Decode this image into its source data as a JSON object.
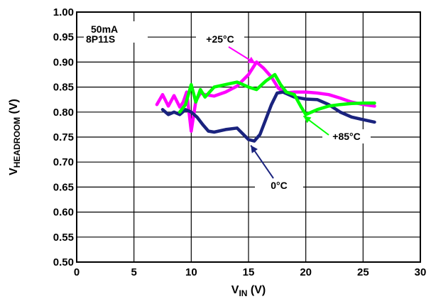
{
  "chart_data": {
    "type": "line",
    "xlabel": {
      "main": "V",
      "sub": "IN",
      "unit": " (V)"
    },
    "ylabel": {
      "main": "V",
      "sub": "HEADROOM",
      "unit": " (V)"
    },
    "xlim": [
      0,
      30
    ],
    "ylim": [
      0.5,
      1.0
    ],
    "x_ticks": [
      "0",
      "5",
      "10",
      "15",
      "20",
      "25",
      "30"
    ],
    "y_ticks": [
      "0.50",
      "0.55",
      "0.60",
      "0.65",
      "0.70",
      "0.75",
      "0.80",
      "0.85",
      "0.90",
      "0.95",
      "1.00"
    ],
    "grid": true,
    "condition_label": [
      "50mA",
      "8P11S"
    ],
    "series": [
      {
        "name": "+25°C",
        "color": "#ff00ff",
        "x": [
          7.0,
          7.5,
          8.0,
          8.5,
          9.0,
          9.3,
          9.6,
          10.0,
          10.4,
          10.8,
          11.2,
          12.0,
          13.0,
          14.0,
          15.0,
          15.7,
          16.3,
          17.0,
          17.6,
          18.2,
          19.0,
          20.0,
          21.0,
          22.0,
          23.0,
          24.0,
          25.0,
          26.0
        ],
        "y": [
          0.815,
          0.835,
          0.812,
          0.833,
          0.81,
          0.82,
          0.84,
          0.762,
          0.822,
          0.838,
          0.835,
          0.832,
          0.84,
          0.852,
          0.875,
          0.9,
          0.888,
          0.87,
          0.848,
          0.838,
          0.84,
          0.84,
          0.838,
          0.835,
          0.828,
          0.82,
          0.815,
          0.812
        ]
      },
      {
        "name": "+85°C",
        "color": "#00ff00",
        "x": [
          9.0,
          9.5,
          10.0,
          10.4,
          10.8,
          11.2,
          12.0,
          13.0,
          14.0,
          15.0,
          15.7,
          16.5,
          17.3,
          17.8,
          18.3,
          19.0,
          19.6,
          20.0,
          21.0,
          22.0,
          23.0,
          24.0,
          25.0,
          26.0
        ],
        "y": [
          0.8,
          0.815,
          0.855,
          0.82,
          0.845,
          0.83,
          0.85,
          0.855,
          0.86,
          0.85,
          0.845,
          0.862,
          0.875,
          0.855,
          0.84,
          0.835,
          0.81,
          0.795,
          0.805,
          0.812,
          0.815,
          0.817,
          0.818,
          0.818
        ]
      },
      {
        "name": "0°C",
        "color": "#1a237e",
        "x": [
          7.5,
          8.0,
          8.5,
          9.0,
          9.5,
          10.0,
          10.5,
          11.0,
          11.5,
          12.0,
          13.0,
          14.0,
          15.0,
          15.5,
          16.0,
          16.5,
          17.0,
          17.5,
          18.0,
          19.0,
          20.0,
          21.0,
          22.0,
          23.0,
          24.0,
          25.0,
          26.0
        ],
        "y": [
          0.805,
          0.795,
          0.8,
          0.795,
          0.805,
          0.8,
          0.79,
          0.775,
          0.762,
          0.76,
          0.765,
          0.768,
          0.745,
          0.742,
          0.755,
          0.785,
          0.815,
          0.838,
          0.84,
          0.83,
          0.826,
          0.825,
          0.815,
          0.8,
          0.79,
          0.785,
          0.78
        ]
      }
    ]
  }
}
